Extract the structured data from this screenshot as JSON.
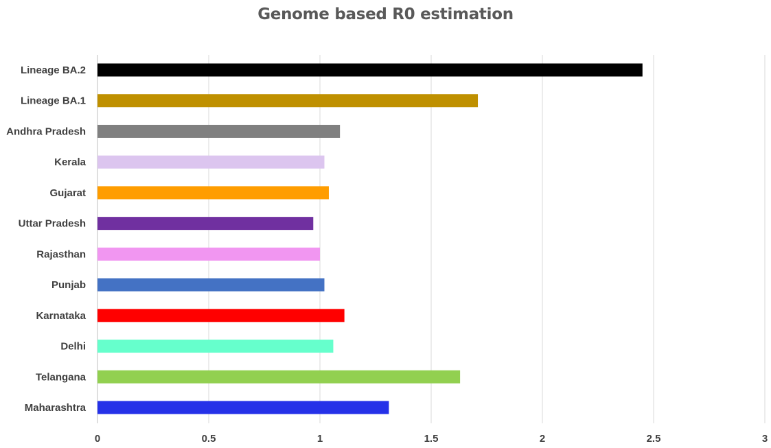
{
  "chart_data": {
    "type": "bar",
    "orientation": "horizontal",
    "title": "Genome based R0 estimation",
    "xlabel": "",
    "ylabel": "",
    "xlim": [
      0,
      3
    ],
    "x_ticks": [
      "0",
      "0.5",
      "1",
      "1.5",
      "2",
      "2.5",
      "3"
    ],
    "grid": true,
    "legend": "none",
    "categories": [
      "Lineage BA.2",
      "Lineage BA.1",
      "Andhra Pradesh",
      "Kerala",
      "Gujarat",
      "Uttar Pradesh",
      "Rajasthan",
      "Punjab",
      "Karnataka",
      "Delhi",
      "Telangana",
      "Maharashtra"
    ],
    "values": [
      2.45,
      1.71,
      1.09,
      1.02,
      1.04,
      0.97,
      1.0,
      1.02,
      1.11,
      1.06,
      1.63,
      1.31
    ],
    "colors": [
      "#000000",
      "#bf9000",
      "#808080",
      "#dcc5ef",
      "#ff9d00",
      "#7030a0",
      "#f196f1",
      "#4472c4",
      "#ff0000",
      "#66ffcc",
      "#92d050",
      "#2531e8"
    ]
  }
}
